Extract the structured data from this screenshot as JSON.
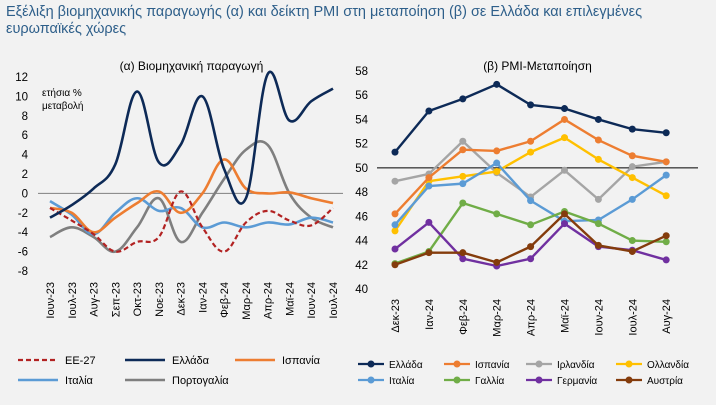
{
  "page_title": "Εξέλιξη βιομηχανικής παραγωγής (α) και δείκτη PMI στη μεταποίηση (β) σε Ελλάδα και επιλεγμένες ευρωπαϊκές χώρες",
  "colors": {
    "background": "#f2f2f2",
    "title": "#2e5f8a",
    "Ελλάδα": "#0d2a57",
    "ΕΕ-27": "#b22222",
    "Ισπανία": "#ed7d31",
    "Ιταλία": "#5b9bd5",
    "Πορτογαλία": "#7f7f7f",
    "Ιρλανδία": "#a5a5a5",
    "Ολλανδία": "#ffc000",
    "Γαλλία": "#70ad47",
    "Γερμανία": "#7030a0",
    "Αυστρία": "#843c0c"
  },
  "chart_data": [
    {
      "type": "line",
      "title": "(α) Βιομηχανική παραγωγή",
      "ylabel": "ετήσια % μεταβολή",
      "xlabel": "",
      "ylim": [
        -8,
        12
      ],
      "yticks": [
        -8,
        -6,
        -4,
        -2,
        0,
        2,
        4,
        6,
        8,
        10,
        12
      ],
      "x": [
        "Ιουν-23",
        "Ιουλ-23",
        "Αυγ-23",
        "Σεπ-23",
        "Οκτ-23",
        "Νοε-23",
        "Δεκ-23",
        "Ιαν-24",
        "Φεβ-24",
        "Μαρ-24",
        "Απρ-24",
        "Μαϊ-24",
        "Ιουν-24",
        "Ιουλ-24"
      ],
      "grid": false,
      "legend": "bottom",
      "series": [
        {
          "name": "ΕΕ-27",
          "dashed": true,
          "values": [
            -1.5,
            -2.8,
            -4.2,
            -6.0,
            -5.0,
            -4.5,
            0.2,
            -3.5,
            -6.0,
            -3.0,
            -1.8,
            -2.8,
            -3.3,
            -1.5
          ]
        },
        {
          "name": "Ελλάδα",
          "values": [
            -2.5,
            -1.2,
            0.5,
            3.0,
            10.5,
            3.2,
            5.0,
            10.0,
            2.5,
            -0.5,
            12.3,
            7.5,
            9.5,
            10.8
          ]
        },
        {
          "name": "Ισπανία",
          "values": [
            -1.5,
            -2.0,
            -4.0,
            -2.5,
            -1.0,
            0.2,
            -2.0,
            0.0,
            3.5,
            0.5,
            0.0,
            0.1,
            -0.5,
            -1.0
          ]
        },
        {
          "name": "Ιταλία",
          "values": [
            -0.8,
            -2.2,
            -4.2,
            -2.0,
            -0.5,
            -1.8,
            -1.5,
            -3.5,
            -3.0,
            -3.5,
            -3.0,
            -3.2,
            -2.5,
            -3.0
          ]
        },
        {
          "name": "Πορτογαλία",
          "values": [
            -4.5,
            -3.5,
            -4.5,
            -6.0,
            -3.5,
            -0.5,
            -5.0,
            -2.0,
            1.5,
            4.5,
            5.0,
            0.0,
            -2.5,
            -3.5
          ]
        }
      ]
    },
    {
      "type": "line",
      "title": "(β) PMI-Μεταποίηση",
      "xlabel": "",
      "ylabel": "",
      "ylim": [
        40,
        58
      ],
      "yticks": [
        40,
        42,
        44,
        46,
        48,
        50,
        52,
        54,
        56,
        58
      ],
      "reference_line": 50,
      "markers": true,
      "x": [
        "Δεκ-23",
        "Ιαν-24",
        "Φεβ-24",
        "Μαρ-24",
        "Απρ-24",
        "Μαϊ-24",
        "Ιουν-24",
        "Ιουλ-24",
        "Αυγ-24"
      ],
      "grid": false,
      "legend": "bottom",
      "series": [
        {
          "name": "Ελλάδα",
          "values": [
            51.3,
            54.7,
            55.7,
            56.9,
            55.2,
            54.9,
            54.0,
            53.2,
            52.9
          ]
        },
        {
          "name": "Ισπανία",
          "values": [
            46.2,
            49.2,
            51.5,
            51.4,
            52.2,
            54.0,
            52.3,
            51.0,
            50.5
          ]
        },
        {
          "name": "Ιρλανδία",
          "values": [
            48.9,
            49.5,
            52.2,
            49.6,
            47.6,
            49.8,
            47.4,
            50.1,
            50.5
          ]
        },
        {
          "name": "Ολλανδία",
          "values": [
            44.8,
            48.9,
            49.3,
            49.7,
            51.3,
            52.5,
            50.7,
            49.2,
            47.7
          ]
        },
        {
          "name": "Ιταλία",
          "values": [
            45.3,
            48.5,
            48.7,
            50.4,
            47.3,
            45.6,
            45.7,
            47.4,
            49.4
          ]
        },
        {
          "name": "Γαλλία",
          "values": [
            42.1,
            43.1,
            47.1,
            46.2,
            45.3,
            46.4,
            45.4,
            44.0,
            43.9
          ]
        },
        {
          "name": "Γερμανία",
          "values": [
            43.3,
            45.5,
            42.5,
            41.9,
            42.5,
            45.4,
            43.5,
            43.2,
            42.4
          ]
        },
        {
          "name": "Αυστρία",
          "values": [
            42.0,
            43.0,
            43.0,
            42.2,
            43.5,
            46.2,
            43.6,
            43.1,
            44.4
          ]
        }
      ]
    }
  ]
}
